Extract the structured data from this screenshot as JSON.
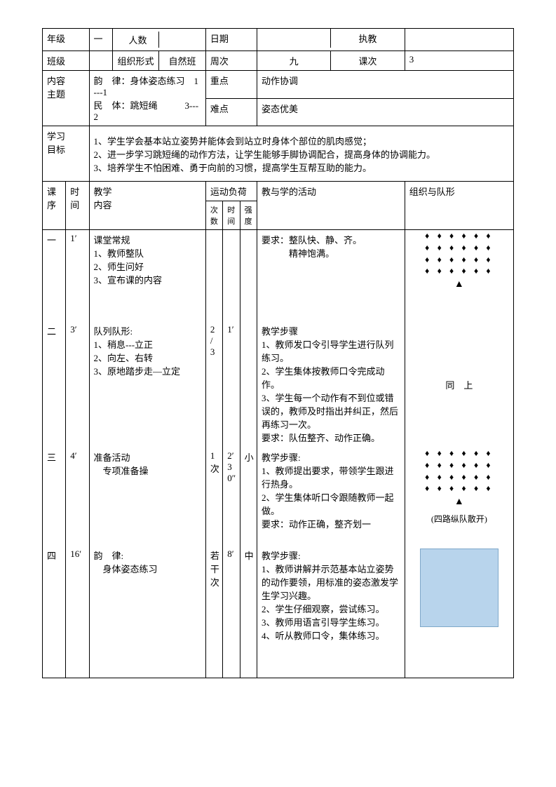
{
  "header": {
    "labels": {
      "grade": "年级",
      "class": "班级",
      "people": "人数",
      "orgForm": "组织形式",
      "date": "日期",
      "week": "周次",
      "teacher": "执教",
      "lesson": "课次",
      "content": "内容\n主题",
      "focus": "重点",
      "difficulty": "难点",
      "goal": "学习\n目标"
    },
    "values": {
      "grade": "一",
      "class": "",
      "people": "",
      "orgForm": "自然班",
      "date": "",
      "week": "九",
      "teacher": "",
      "lesson": "3",
      "contentTheme": "韵　律：身体姿态练习　1---1\n民　体：跳短绳　　　3---2",
      "focus": "动作协调",
      "difficulty": "姿态优美",
      "goals": "1、学生学会基本站立姿势并能体会到站立时身体个部位的肌肉感觉；\n2、进一步学习跳短绳的动作方法，让学生能够手脚协调配合，提高身体的协调能力。\n3、培养学生不怕困难、勇于向前的习惯，提高学生互帮互助的能力。"
    }
  },
  "cols": {
    "seq": "课序",
    "time": "时间",
    "content": "教学\n内容",
    "load": "运动负荷",
    "loadCount": "次数",
    "loadTime": "时间",
    "loadIntensity": "强度",
    "activity": "教与学的活动",
    "formation": "组织与队形"
  },
  "sections": [
    {
      "seq": "一",
      "time": "1′",
      "content": "课堂常规\n1、教师整队\n2、师生问好\n3、宣布课的内容",
      "count": "",
      "ltime": "",
      "intensity": "",
      "activity": "要求：整队快、静、齐。\n　　　精神饱满。",
      "formationNote": ""
    },
    {
      "seq": "二",
      "time": "3′",
      "content": "队列队形:\n1、稍息---立正\n2、向左、右转\n3、原地踏步走—立定",
      "count": "2\n/\n3",
      "ltime": "1′",
      "intensity": "",
      "activity": "教学步骤\n1、教师发口令引导学生进行队列练习。\n2、学生集体按教师口令完成动作。\n3、学生每一个动作有不到位或错误的，教师及时指出并纠正，然后再练习一次。\n要求：队伍整齐、动作正确。",
      "formationNote": "同　上"
    },
    {
      "seq": "三",
      "time": "4′",
      "content": "准备活动\n　专项准备操",
      "count": "1\n次",
      "ltime": "2′\n30″",
      "intensity": "小",
      "activity": "教学步骤:\n1、教师提出要求，带领学生跟进行热身。\n2、学生集体听口令跟随教师一起做。\n要求：动作正确，整齐划一",
      "formationNote": "(四路纵队散开)"
    },
    {
      "seq": "四",
      "time": "16′",
      "content": "韵　律:\n　身体姿态练习",
      "count": "若\n干\n次",
      "ltime": "8′",
      "intensity": "中",
      "activity": "教学步骤:\n1、教师讲解并示范基本站立姿势的动作要领，用标准的姿态激发学生学习兴趣。\n2、学生仔细观察，尝试练习。\n3、教师用语言引导学生练习。\n4、听从教师口令，集体练习。",
      "formationNote": ""
    }
  ]
}
